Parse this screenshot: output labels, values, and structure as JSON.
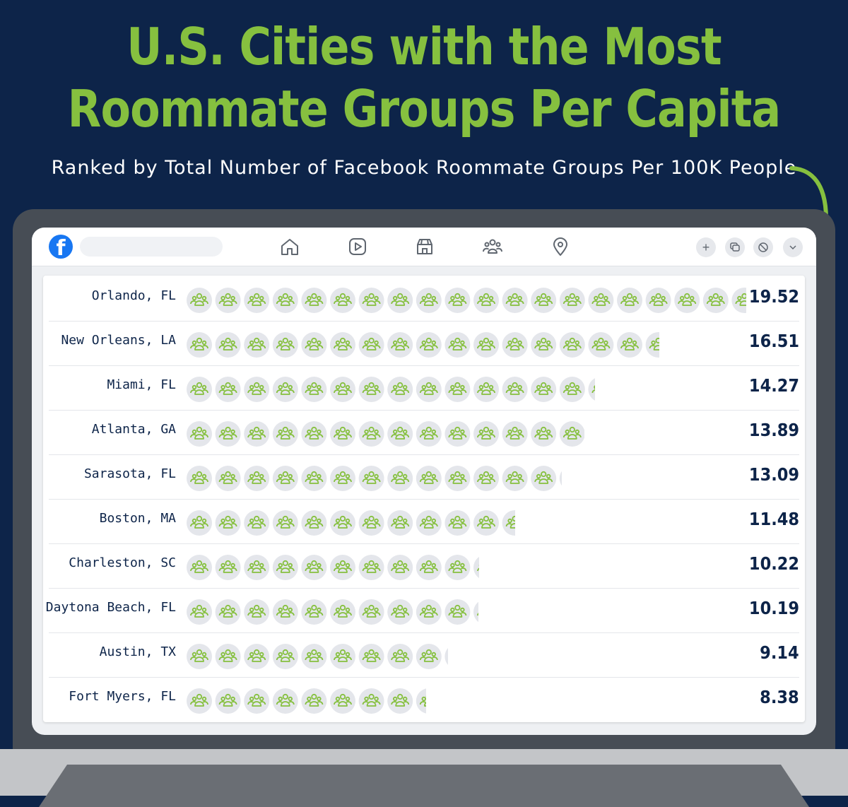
{
  "title_lines": [
    "U.S. Cities with the Most",
    "Roommate Groups Per Capita"
  ],
  "subtitle": "Ranked by Total Number of Facebook Roommate Groups Per 100K People",
  "colors": {
    "background": "#0d2449",
    "accent": "#86c03f",
    "icon_circle": "#e4e6eb",
    "facebook_blue": "#1877f2"
  },
  "browser_bar": {
    "logo": "f",
    "nav_icons": [
      "home-icon",
      "video-icon",
      "marketplace-icon",
      "groups-icon",
      "location-icon"
    ],
    "action_buttons": [
      "plus-icon",
      "messenger-icon",
      "notifications-icon",
      "chevron-down-icon"
    ]
  },
  "chart_data": {
    "type": "bar",
    "title": "U.S. Cities with the Most Roommate Groups Per Capita",
    "subtitle": "Ranked by Total Number of Facebook Roommate Groups Per 100K People",
    "categories": [
      "Orlando, FL",
      "New Orleans, LA",
      "Miami, FL",
      "Atlanta, GA",
      "Sarasota, FL",
      "Boston, MA",
      "Charleston, SC",
      "Daytona Beach, FL",
      "Austin, TX",
      "Fort Myers, FL"
    ],
    "values": [
      19.52,
      16.51,
      14.27,
      13.89,
      13.09,
      11.48,
      10.22,
      10.19,
      9.14,
      8.38
    ],
    "value_labels": [
      "19.52",
      "16.51",
      "14.27",
      "13.89",
      "13.09",
      "11.48",
      "10.22",
      "10.19",
      "9.14",
      "8.38"
    ],
    "orientation": "horizontal",
    "icon": "groups-icon",
    "units_per_icon": 1,
    "grid": false,
    "legend": "none"
  }
}
